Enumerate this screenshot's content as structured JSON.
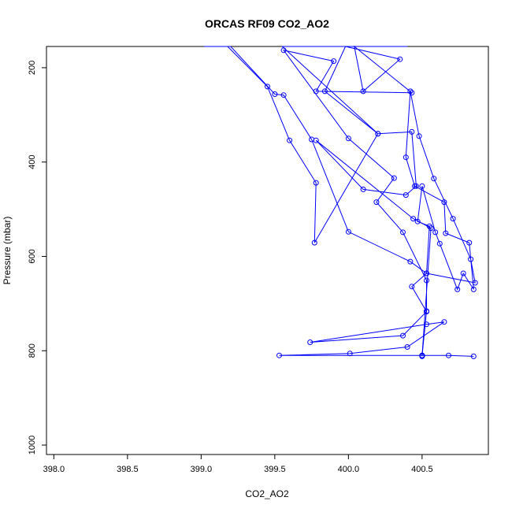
{
  "chart_data": {
    "type": "line",
    "title": "ORCAS RF09 CO2_AO2",
    "xlabel": "CO2_AO2",
    "ylabel": "Pressure (mbar)",
    "xlim": [
      397.95,
      400.95
    ],
    "ylim": [
      1020,
      155
    ],
    "y_inverted": true,
    "grid": false,
    "legend": "none",
    "x_ticks": [
      "398.0",
      "398.5",
      "399.0",
      "399.5",
      "400.0",
      "400.5"
    ],
    "y_ticks": [
      "200",
      "400",
      "600",
      "800",
      "1000"
    ],
    "marker": "open-circle",
    "line_color": "#0000ff",
    "series": [
      {
        "points": [
          [
            399.02,
            155
          ],
          [
            399.2,
            155
          ],
          [
            399.5,
            256
          ],
          [
            399.56,
            258
          ],
          [
            399.75,
            352
          ],
          [
            400.0,
            548
          ],
          [
            400.42,
            611
          ],
          [
            400.53,
            636
          ],
          [
            400.86,
            656
          ],
          [
            400.83,
            606
          ],
          [
            400.71,
            520
          ],
          [
            400.58,
            435
          ],
          [
            400.48,
            345
          ],
          [
            400.42,
            250
          ],
          [
            400.39,
            390
          ],
          [
            400.45,
            451
          ],
          [
            400.65,
            485
          ],
          [
            400.66,
            551
          ],
          [
            400.82,
            571
          ],
          [
            400.85,
            670
          ],
          [
            400.78,
            636
          ],
          [
            400.74,
            670
          ],
          [
            400.62,
            573
          ],
          [
            400.59,
            549
          ],
          [
            400.5,
            451
          ],
          [
            400.47,
            526
          ],
          [
            400.55,
            536
          ],
          [
            400.53,
            636
          ],
          [
            400.43,
            664
          ],
          [
            400.53,
            717
          ],
          [
            400.37,
            768
          ],
          [
            399.74,
            782
          ],
          [
            400.53,
            744
          ],
          [
            400.65,
            739
          ],
          [
            400.4,
            792
          ],
          [
            400.01,
            806
          ],
          [
            399.53,
            810
          ],
          [
            400.5,
            810
          ],
          [
            400.68,
            810
          ],
          [
            400.85,
            812
          ]
        ]
      },
      {
        "points": [
          [
            399.18,
            155
          ],
          [
            399.45,
            240
          ],
          [
            399.6,
            354
          ],
          [
            399.78,
            444
          ],
          [
            399.77,
            571
          ],
          [
            400.2,
            340
          ],
          [
            399.84,
            250
          ],
          [
            399.98,
            155
          ],
          [
            400.35,
            182
          ],
          [
            400.1,
            250
          ],
          [
            400.04,
            155
          ],
          [
            400.43,
            253
          ],
          [
            399.78,
            250
          ],
          [
            399.9,
            186
          ],
          [
            399.56,
            163
          ],
          [
            400.0,
            350
          ],
          [
            400.31,
            434
          ],
          [
            400.19,
            485
          ],
          [
            400.37,
            549
          ],
          [
            400.53,
            651
          ],
          [
            400.53,
            716
          ],
          [
            400.5,
            810
          ],
          [
            400.5,
            812
          ]
        ]
      },
      {
        "points": [
          [
            400.4,
            155
          ],
          [
            399.55,
            155
          ],
          [
            400.2,
            340
          ],
          [
            400.43,
            336
          ],
          [
            400.46,
            451
          ],
          [
            400.39,
            470
          ],
          [
            400.1,
            458
          ],
          [
            399.78,
            354
          ],
          [
            400.44,
            520
          ],
          [
            400.56,
            540
          ],
          [
            400.5,
            810
          ]
        ]
      }
    ]
  }
}
